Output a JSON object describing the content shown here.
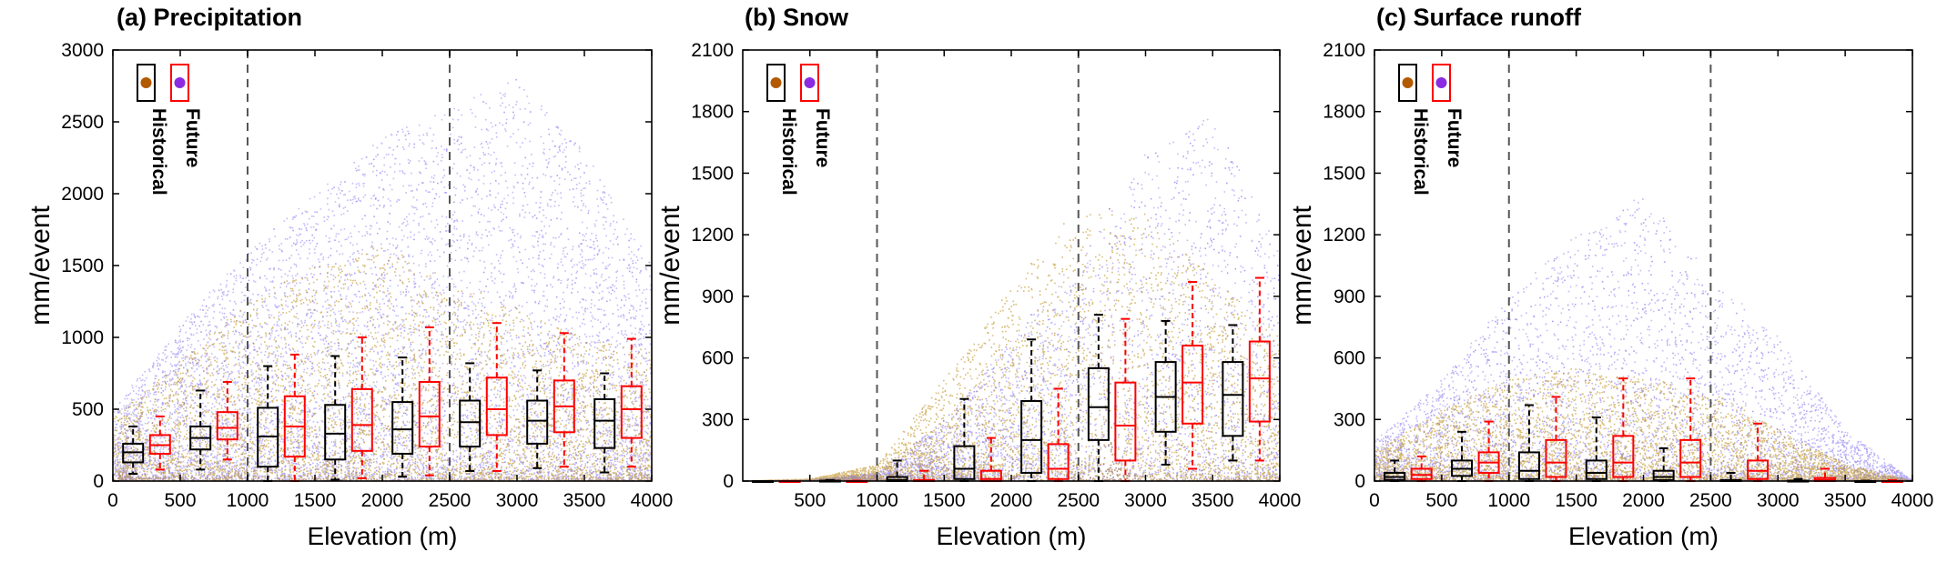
{
  "colors": {
    "historical_points": "#b8860b",
    "future_points": "#7b68ee",
    "historical_marker": "#b35900",
    "future_marker": "#8a2be2",
    "historical_box": "#000000",
    "future_box": "#ff0000",
    "dashed_line": "#555555"
  },
  "legend": {
    "historical": "Historical",
    "future": "Future"
  },
  "chart_data": [
    {
      "type": "box",
      "title": "(a) Precipitation",
      "xlabel": "Elevation (m)",
      "ylabel": "mm/event",
      "xlim": [
        0,
        4000
      ],
      "ylim": [
        0,
        3000
      ],
      "xticks": [
        0,
        500,
        1000,
        1500,
        2000,
        2500,
        3000,
        3500,
        4000
      ],
      "yticks": [
        0,
        500,
        1000,
        1500,
        2000,
        2500,
        3000
      ],
      "vlines": [
        1000,
        2500
      ],
      "legend_position": "top-left",
      "scatter_envelope": {
        "x": [
          0,
          500,
          1000,
          1500,
          2000,
          2500,
          3000,
          3500,
          4000
        ],
        "historical_max": [
          450,
          850,
          1250,
          1500,
          1650,
          1400,
          1200,
          1000,
          900
        ],
        "future_max": [
          500,
          1100,
          1600,
          2000,
          2400,
          2600,
          2800,
          2300,
          1500
        ]
      },
      "series": [
        {
          "name": "Historical",
          "boxes": [
            {
              "x": 150,
              "whisker_low": 50,
              "q1": 130,
              "median": 200,
              "q3": 260,
              "whisker_high": 380
            },
            {
              "x": 650,
              "whisker_low": 80,
              "q1": 220,
              "median": 300,
              "q3": 380,
              "whisker_high": 630
            },
            {
              "x": 1150,
              "whisker_low": 0,
              "q1": 100,
              "median": 310,
              "q3": 510,
              "whisker_high": 800
            },
            {
              "x": 1650,
              "whisker_low": 10,
              "q1": 150,
              "median": 330,
              "q3": 530,
              "whisker_high": 870
            },
            {
              "x": 2150,
              "whisker_low": 30,
              "q1": 190,
              "median": 360,
              "q3": 550,
              "whisker_high": 860
            },
            {
              "x": 2650,
              "whisker_low": 70,
              "q1": 240,
              "median": 410,
              "q3": 560,
              "whisker_high": 820
            },
            {
              "x": 3150,
              "whisker_low": 90,
              "q1": 260,
              "median": 420,
              "q3": 560,
              "whisker_high": 770
            },
            {
              "x": 3650,
              "whisker_low": 60,
              "q1": 230,
              "median": 420,
              "q3": 570,
              "whisker_high": 750
            }
          ]
        },
        {
          "name": "Future",
          "boxes": [
            {
              "x": 350,
              "whisker_low": 80,
              "q1": 190,
              "median": 250,
              "q3": 320,
              "whisker_high": 450
            },
            {
              "x": 850,
              "whisker_low": 150,
              "q1": 290,
              "median": 370,
              "q3": 480,
              "whisker_high": 690
            },
            {
              "x": 1350,
              "whisker_low": 0,
              "q1": 170,
              "median": 380,
              "q3": 590,
              "whisker_high": 880
            },
            {
              "x": 1850,
              "whisker_low": 20,
              "q1": 210,
              "median": 390,
              "q3": 640,
              "whisker_high": 1000
            },
            {
              "x": 2350,
              "whisker_low": 40,
              "q1": 240,
              "median": 450,
              "q3": 690,
              "whisker_high": 1070
            },
            {
              "x": 2850,
              "whisker_low": 70,
              "q1": 320,
              "median": 500,
              "q3": 720,
              "whisker_high": 1100
            },
            {
              "x": 3350,
              "whisker_low": 100,
              "q1": 340,
              "median": 520,
              "q3": 700,
              "whisker_high": 1030
            },
            {
              "x": 3850,
              "whisker_low": 100,
              "q1": 300,
              "median": 500,
              "q3": 660,
              "whisker_high": 990
            }
          ]
        }
      ]
    },
    {
      "type": "box",
      "title": "(b) Snow",
      "xlabel": "Elevation (m)",
      "ylabel": "mm/event",
      "xlim": [
        0,
        4000
      ],
      "ylim": [
        0,
        2100
      ],
      "xticks": [
        500,
        1000,
        1500,
        2000,
        2500,
        3000,
        3500,
        4000
      ],
      "yticks": [
        0,
        300,
        600,
        900,
        1200,
        1500,
        1800,
        2100
      ],
      "vlines": [
        1000,
        2500
      ],
      "legend_position": "top-left",
      "scatter_envelope": {
        "x": [
          0,
          500,
          1000,
          1500,
          2000,
          2500,
          3000,
          3500,
          4000
        ],
        "historical_max": [
          0,
          10,
          80,
          500,
          950,
          1350,
          1300,
          1000,
          700
        ],
        "future_max": [
          0,
          5,
          40,
          300,
          700,
          1100,
          1600,
          1800,
          1100
        ]
      },
      "series": [
        {
          "name": "Historical",
          "boxes": [
            {
              "x": 150,
              "whisker_low": 0,
              "q1": 0,
              "median": 0,
              "q3": 0,
              "whisker_high": 0
            },
            {
              "x": 650,
              "whisker_low": 0,
              "q1": 0,
              "median": 0,
              "q3": 2,
              "whisker_high": 5
            },
            {
              "x": 1150,
              "whisker_low": 0,
              "q1": 0,
              "median": 5,
              "q3": 20,
              "whisker_high": 100
            },
            {
              "x": 1650,
              "whisker_low": 0,
              "q1": 10,
              "median": 60,
              "q3": 170,
              "whisker_high": 400
            },
            {
              "x": 2150,
              "whisker_low": 0,
              "q1": 40,
              "median": 200,
              "q3": 390,
              "whisker_high": 690
            },
            {
              "x": 2650,
              "whisker_low": 0,
              "q1": 200,
              "median": 360,
              "q3": 550,
              "whisker_high": 810
            },
            {
              "x": 3150,
              "whisker_low": 80,
              "q1": 240,
              "median": 410,
              "q3": 580,
              "whisker_high": 780
            },
            {
              "x": 3650,
              "whisker_low": 100,
              "q1": 220,
              "median": 420,
              "q3": 580,
              "whisker_high": 760
            }
          ]
        },
        {
          "name": "Future",
          "boxes": [
            {
              "x": 350,
              "whisker_low": 0,
              "q1": 0,
              "median": 0,
              "q3": 0,
              "whisker_high": 0
            },
            {
              "x": 850,
              "whisker_low": 0,
              "q1": 0,
              "median": 0,
              "q3": 0,
              "whisker_high": 2
            },
            {
              "x": 1350,
              "whisker_low": 0,
              "q1": 0,
              "median": 0,
              "q3": 5,
              "whisker_high": 50
            },
            {
              "x": 1850,
              "whisker_low": 0,
              "q1": 0,
              "median": 10,
              "q3": 50,
              "whisker_high": 210
            },
            {
              "x": 2350,
              "whisker_low": 0,
              "q1": 10,
              "median": 60,
              "q3": 180,
              "whisker_high": 450
            },
            {
              "x": 2850,
              "whisker_low": 0,
              "q1": 100,
              "median": 270,
              "q3": 480,
              "whisker_high": 790
            },
            {
              "x": 3350,
              "whisker_low": 60,
              "q1": 280,
              "median": 480,
              "q3": 660,
              "whisker_high": 970
            },
            {
              "x": 3850,
              "whisker_low": 100,
              "q1": 290,
              "median": 500,
              "q3": 680,
              "whisker_high": 990
            }
          ]
        }
      ]
    },
    {
      "type": "box",
      "title": "(c) Surface runoff",
      "xlabel": "Elevation (m)",
      "ylabel": "mm/event",
      "xlim": [
        0,
        4000
      ],
      "ylim": [
        0,
        2100
      ],
      "xticks": [
        0,
        500,
        1000,
        1500,
        2000,
        2500,
        3000,
        3500,
        4000
      ],
      "yticks": [
        0,
        300,
        600,
        900,
        1200,
        1500,
        1800,
        2100
      ],
      "vlines": [
        1000,
        2500
      ],
      "legend_position": "top-left",
      "scatter_envelope": {
        "x": [
          0,
          500,
          1000,
          1500,
          2000,
          2500,
          3000,
          3500,
          4000
        ],
        "historical_max": [
          150,
          350,
          500,
          550,
          500,
          450,
          250,
          80,
          0
        ],
        "future_max": [
          200,
          500,
          900,
          1200,
          1400,
          1000,
          700,
          250,
          0
        ]
      },
      "series": [
        {
          "name": "Historical",
          "boxes": [
            {
              "x": 150,
              "whisker_low": 0,
              "q1": 5,
              "median": 20,
              "q3": 40,
              "whisker_high": 100
            },
            {
              "x": 650,
              "whisker_low": 0,
              "q1": 25,
              "median": 60,
              "q3": 100,
              "whisker_high": 240
            },
            {
              "x": 1150,
              "whisker_low": 0,
              "q1": 10,
              "median": 50,
              "q3": 140,
              "whisker_high": 370
            },
            {
              "x": 1650,
              "whisker_low": 0,
              "q1": 10,
              "median": 40,
              "q3": 100,
              "whisker_high": 310
            },
            {
              "x": 2150,
              "whisker_low": 0,
              "q1": 5,
              "median": 20,
              "q3": 50,
              "whisker_high": 160
            },
            {
              "x": 2650,
              "whisker_low": 0,
              "q1": 0,
              "median": 0,
              "q3": 5,
              "whisker_high": 40
            },
            {
              "x": 3150,
              "whisker_low": 0,
              "q1": 0,
              "median": 0,
              "q3": 2,
              "whisker_high": 10
            },
            {
              "x": 3650,
              "whisker_low": 0,
              "q1": 0,
              "median": 0,
              "q3": 0,
              "whisker_high": 2
            }
          ]
        },
        {
          "name": "Future",
          "boxes": [
            {
              "x": 350,
              "whisker_low": 0,
              "q1": 10,
              "median": 30,
              "q3": 60,
              "whisker_high": 120
            },
            {
              "x": 850,
              "whisker_low": 0,
              "q1": 40,
              "median": 90,
              "q3": 140,
              "whisker_high": 290
            },
            {
              "x": 1350,
              "whisker_low": 0,
              "q1": 20,
              "median": 90,
              "q3": 200,
              "whisker_high": 410
            },
            {
              "x": 1850,
              "whisker_low": 0,
              "q1": 20,
              "median": 90,
              "q3": 220,
              "whisker_high": 500
            },
            {
              "x": 2350,
              "whisker_low": 0,
              "q1": 20,
              "median": 90,
              "q3": 200,
              "whisker_high": 500
            },
            {
              "x": 2850,
              "whisker_low": 0,
              "q1": 10,
              "median": 50,
              "q3": 100,
              "whisker_high": 280
            },
            {
              "x": 3350,
              "whisker_low": 0,
              "q1": 0,
              "median": 5,
              "q3": 15,
              "whisker_high": 60
            },
            {
              "x": 3850,
              "whisker_low": 0,
              "q1": 0,
              "median": 0,
              "q3": 0,
              "whisker_high": 5
            }
          ]
        }
      ]
    }
  ]
}
